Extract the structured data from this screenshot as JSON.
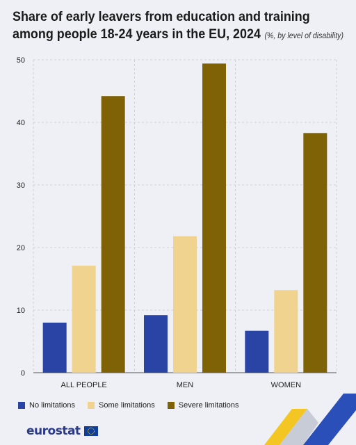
{
  "title": {
    "line1": "Share of early leavers from education and training",
    "line2": "among people 18-24 years in the EU, 2024",
    "subtitle": "(%, by level of disability)"
  },
  "colors": {
    "no_limitations": "#2a44a6",
    "some_limitations": "#f0d38e",
    "severe_limitations": "#7f6206",
    "background": "#eef0f5",
    "gridline": "#c8c8c8"
  },
  "chart_data": {
    "type": "bar",
    "categories": [
      "ALL PEOPLE",
      "MEN",
      "WOMEN"
    ],
    "series": [
      {
        "name": "No limitations",
        "values": [
          8.0,
          9.2,
          6.7
        ]
      },
      {
        "name": "Some limitations",
        "values": [
          17.1,
          21.8,
          13.2
        ]
      },
      {
        "name": "Severe limitations",
        "values": [
          44.2,
          49.4,
          38.3
        ]
      }
    ],
    "yticks": [
      0,
      10,
      20,
      30,
      40,
      50
    ],
    "ylim": [
      0,
      50
    ],
    "xlabel": "",
    "ylabel": "",
    "grid": true,
    "legend_position": "bottom-left"
  },
  "footer": {
    "logo_text": "eurostat",
    "logo_icon": "eu-flag-icon"
  }
}
